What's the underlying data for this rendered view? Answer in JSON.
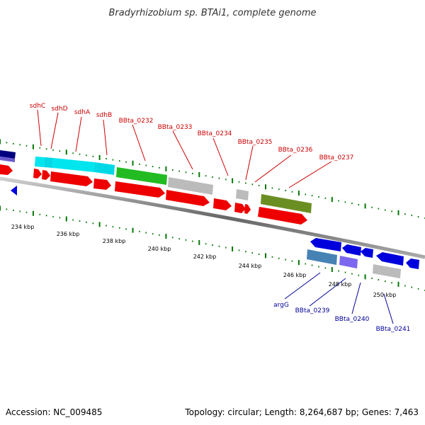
{
  "title": "Bradyrhizobium sp. BTAi1, complete genome",
  "footer": {
    "accession": "Accession: NC_009485",
    "stats": "Topology: circular; Length: 8,264,687 bp; Genes: 7,463"
  },
  "colors": {
    "background": "#ffffff",
    "backbone": "#888888",
    "tick": "#007700",
    "label_red": "#cc0000",
    "label_blue": "#000099",
    "red_gene": "#ee0000",
    "blue_gene": "#0000dd",
    "cyan_gene": "#00e5ee",
    "green_gene": "#22bb22",
    "gray_gene": "#bbbbbb",
    "olive_gene": "#6b8e23",
    "steel_gene": "#4682b4",
    "purple_gene": "#7b68ee",
    "navy_gene": "#000080"
  },
  "scale_labels": [
    "234 kbp",
    "236 kbp",
    "238 kbp",
    "240 kbp",
    "242 kbp",
    "244 kbp",
    "246 kbp",
    "248 kbp",
    "250 kbp"
  ],
  "gene_labels_top": [
    "sdhC",
    "sdhD",
    "sdhA",
    "sdhB",
    "BBta_0232",
    "BBta_0233",
    "BBta_0234",
    "BBta_0235",
    "BBta_0236",
    "BBta_0237"
  ],
  "gene_labels_bottom": [
    "argG",
    "BBta_0239",
    "BBta_0240",
    "BBta_0241"
  ]
}
